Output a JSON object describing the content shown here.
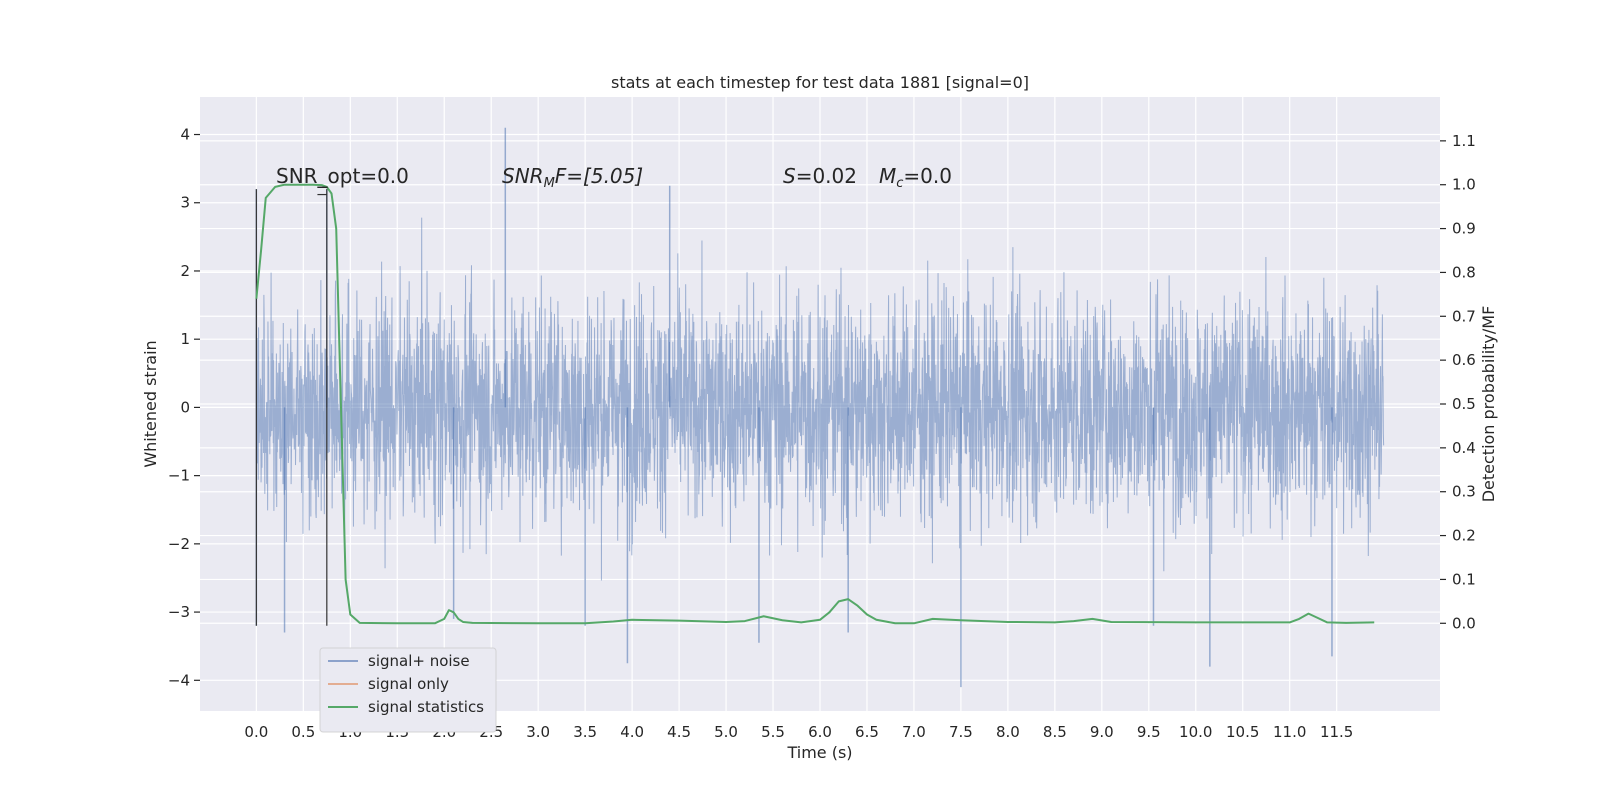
{
  "chart_data": {
    "type": "line",
    "title": "stats at each timestep for test data 1881 [signal=0]",
    "xlabel": "Time (s)",
    "ylabel": "Whitened strain",
    "ylabel_right": "Detection probability/MF",
    "xlim": [
      -0.6,
      12.6
    ],
    "ylim": [
      -4.45,
      4.55
    ],
    "ylim_right": [
      -0.2,
      1.2
    ],
    "x_ticks": [
      "0.0",
      "0.5",
      "1.0",
      "1.5",
      "2.0",
      "2.5",
      "3.0",
      "3.5",
      "4.0",
      "4.5",
      "5.0",
      "5.5",
      "6.0",
      "6.5",
      "7.0",
      "7.5",
      "8.0",
      "8.5",
      "9.0",
      "9.5",
      "10.0",
      "10.5",
      "11.0",
      "11.5"
    ],
    "y_ticks": [
      "4",
      "3",
      "2",
      "1",
      "0",
      "−1",
      "−2",
      "−3",
      "−4"
    ],
    "y_ticks_right": [
      "1.1",
      "1.0",
      "0.9",
      "0.8",
      "0.7",
      "0.6",
      "0.5",
      "0.4",
      "0.3",
      "0.2",
      "0.1",
      "0.0"
    ],
    "grid": true,
    "legend_position": "lower-left",
    "annotations": {
      "snr_opt": "SNR_opt=0.0",
      "snr_mf_sym": "SNR",
      "snr_mf_sub": "M",
      "snr_mf_rest": "F=[5.05]",
      "s_sym": "S",
      "s_rest": "=0.02",
      "mc_sym": "M",
      "mc_sub": "c",
      "mc_rest": "=0.0"
    },
    "series": [
      {
        "name": "signal+ noise",
        "color": "#4c72b0",
        "description_values": "dense whitened strain noise, roughly uniform amplitude ~±2 with spikes to ±3.5",
        "x_range": [
          0.0,
          12.0
        ],
        "spikes": [
          [
            0.0,
            3.2
          ],
          [
            0.0,
            -3.2
          ],
          [
            0.3,
            -3.3
          ],
          [
            0.75,
            3.2
          ],
          [
            2.65,
            4.1
          ],
          [
            2.1,
            -3.1
          ],
          [
            3.5,
            -3.2
          ],
          [
            3.95,
            -3.75
          ],
          [
            4.4,
            3.25
          ],
          [
            5.35,
            -3.45
          ],
          [
            7.5,
            -4.1
          ],
          [
            10.15,
            -3.8
          ],
          [
            11.45,
            -3.65
          ],
          [
            9.55,
            -3.2
          ],
          [
            6.3,
            -3.3
          ]
        ]
      },
      {
        "name": "signal only",
        "color": "#dd8452",
        "values": []
      },
      {
        "name": "signal statistics",
        "color": "#55a868",
        "axis": "right",
        "x": [
          0.0,
          0.05,
          0.1,
          0.2,
          0.3,
          0.5,
          0.6,
          0.7,
          0.75,
          0.8,
          0.85,
          0.9,
          0.95,
          1.0,
          1.1,
          1.5,
          1.9,
          2.0,
          2.05,
          2.1,
          2.15,
          2.2,
          2.3,
          3.0,
          3.5,
          3.8,
          4.0,
          4.5,
          5.0,
          5.2,
          5.4,
          5.6,
          5.8,
          6.0,
          6.1,
          6.2,
          6.3,
          6.4,
          6.5,
          6.6,
          6.8,
          7.0,
          7.2,
          7.5,
          8.0,
          8.5,
          8.7,
          8.9,
          9.1,
          10.0,
          11.0,
          11.1,
          11.2,
          11.3,
          11.4,
          11.6,
          11.9
        ],
        "values": [
          0.74,
          0.85,
          0.97,
          0.995,
          1.0,
          1.0,
          1.0,
          0.999,
          0.995,
          0.98,
          0.9,
          0.5,
          0.1,
          0.02,
          0.001,
          0.0,
          0.0,
          0.01,
          0.03,
          0.025,
          0.01,
          0.003,
          0.001,
          0.0,
          0.0,
          0.004,
          0.008,
          0.006,
          0.003,
          0.005,
          0.016,
          0.007,
          0.002,
          0.008,
          0.025,
          0.05,
          0.055,
          0.04,
          0.02,
          0.008,
          0.0,
          0.0,
          0.01,
          0.007,
          0.003,
          0.002,
          0.005,
          0.01,
          0.003,
          0.002,
          0.002,
          0.01,
          0.022,
          0.012,
          0.002,
          0.001,
          0.002
        ]
      }
    ]
  }
}
